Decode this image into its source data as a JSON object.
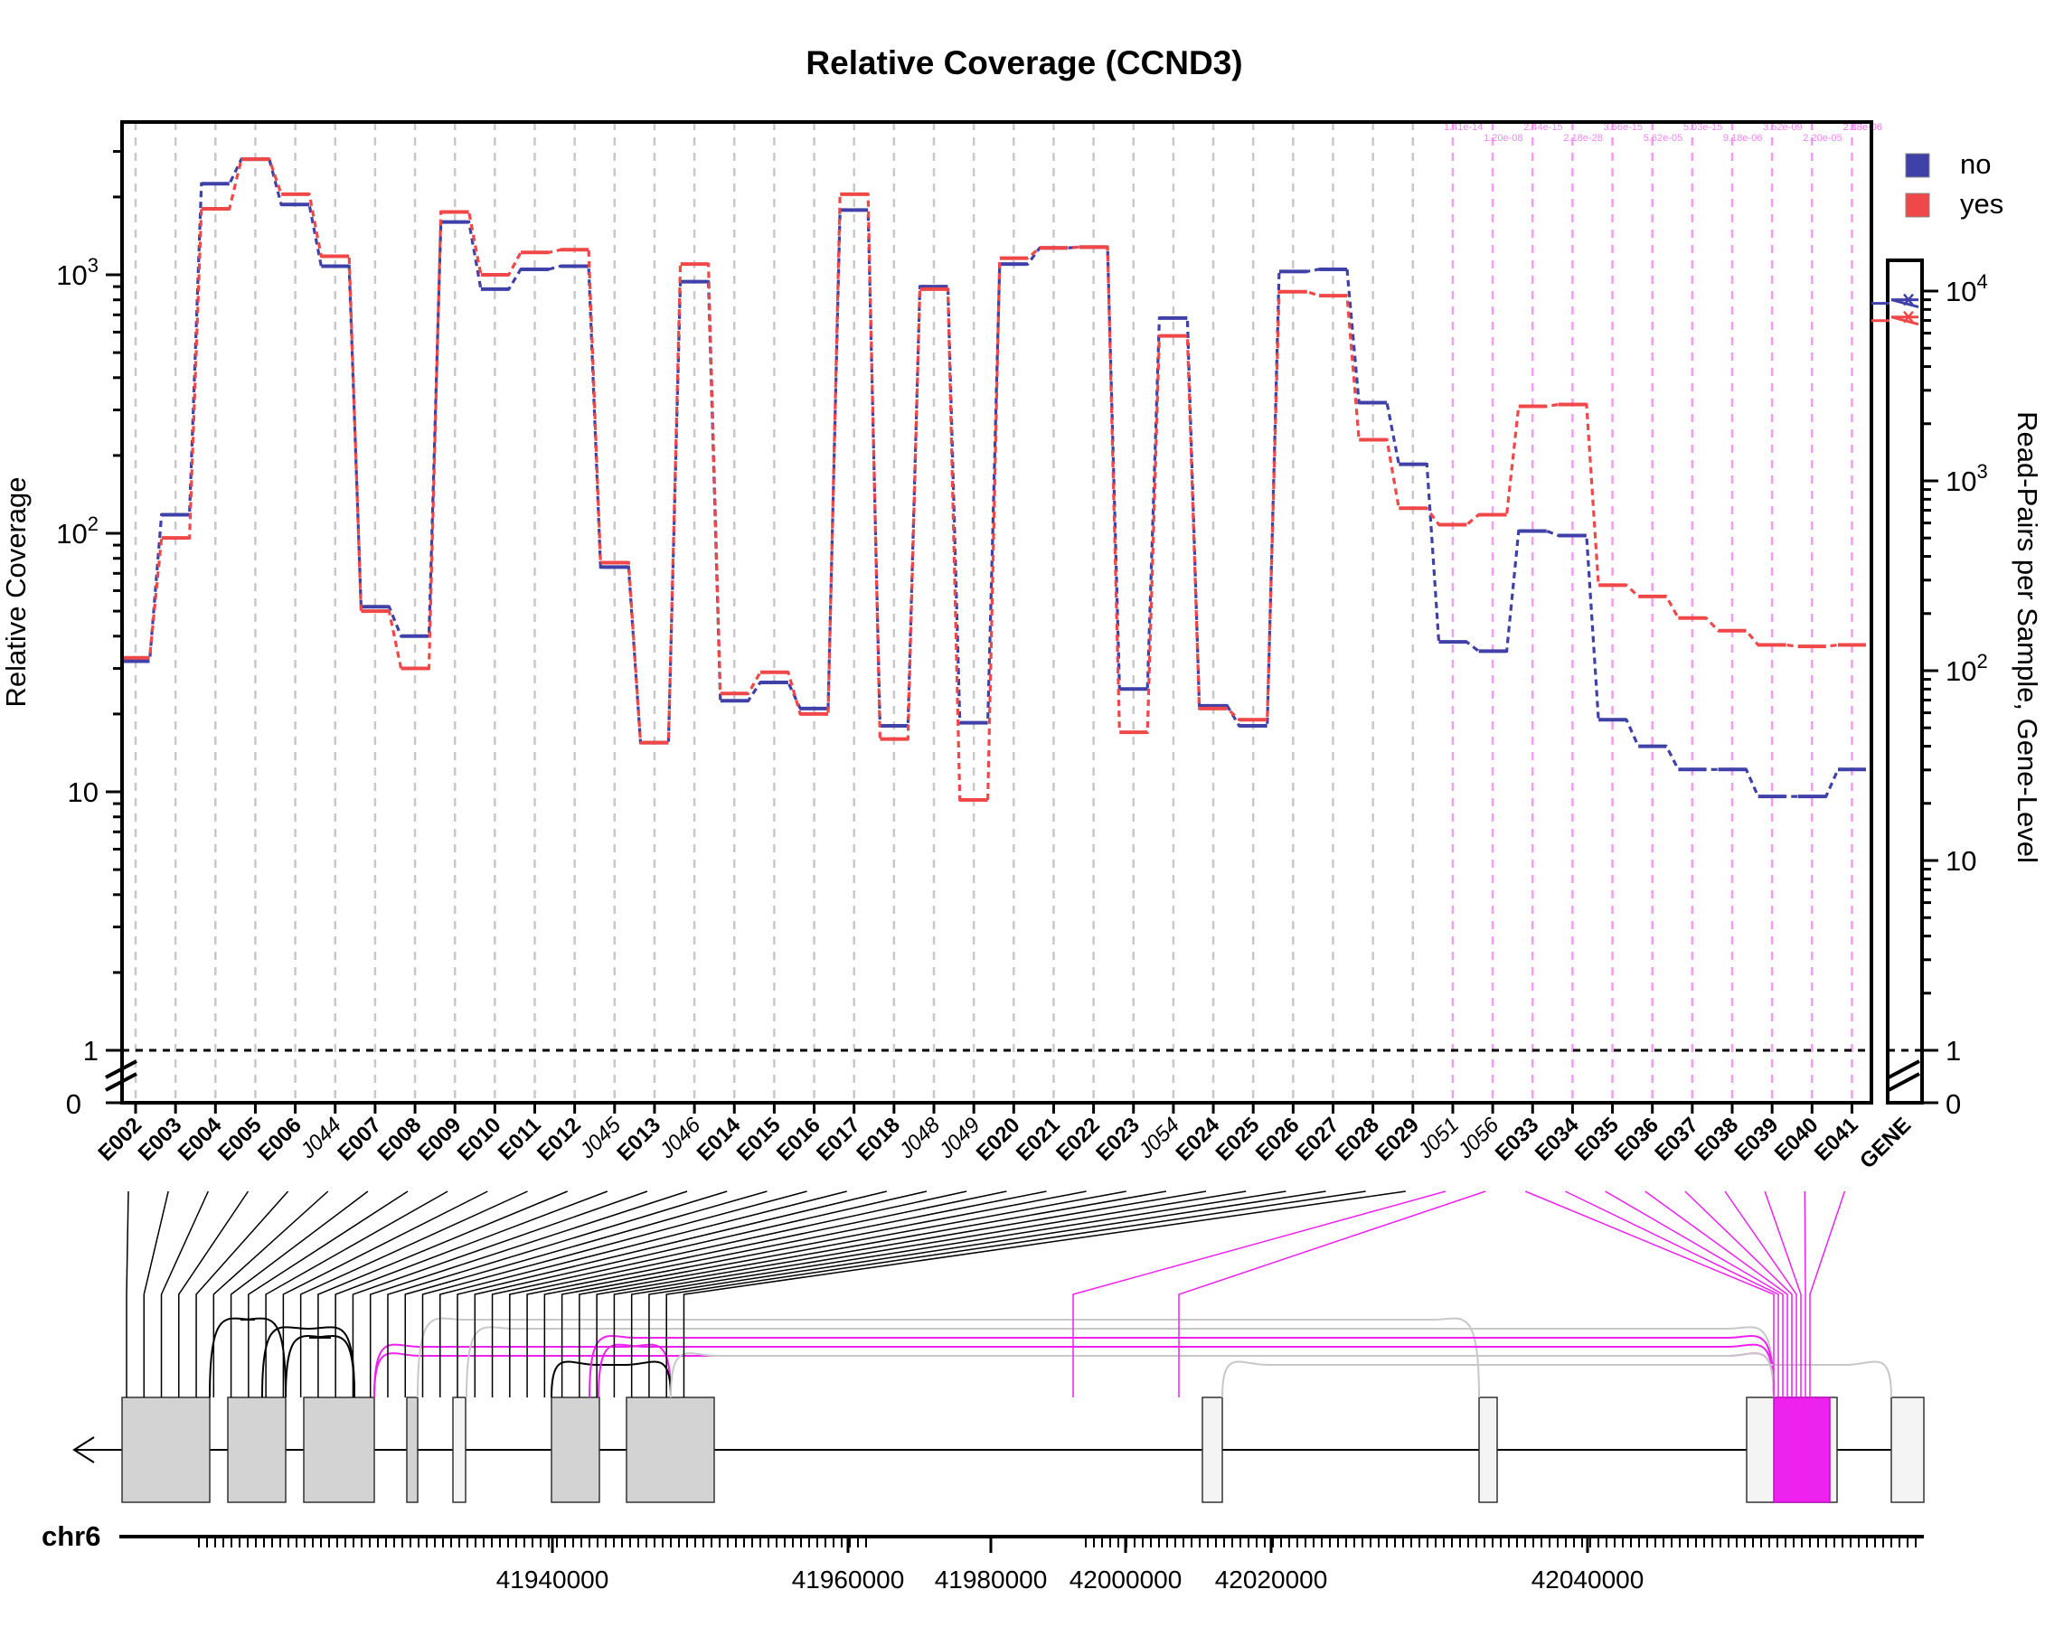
{
  "chart_data": {
    "type": "line",
    "title": "Relative Coverage (CCND3)",
    "ylabel": "Relative Coverage",
    "y2label": "Read-Pairs per Sample, Gene-Level",
    "scale": "log",
    "ylim": [
      0.5,
      4500
    ],
    "y_ticks": [
      {
        "v": 1,
        "label": "1"
      },
      {
        "v": 10,
        "label": "10"
      },
      {
        "v": 100,
        "label": "10",
        "exp": "2"
      },
      {
        "v": 1000,
        "label": "10",
        "exp": "3"
      }
    ],
    "y_zero_label": "0",
    "y2lim": [
      0.5,
      15000
    ],
    "y2_ticks": [
      {
        "v": 1,
        "label": "1"
      },
      {
        "v": 10,
        "label": "10"
      },
      {
        "v": 100,
        "label": "10",
        "exp": "2"
      },
      {
        "v": 1000,
        "label": "10",
        "exp": "3"
      },
      {
        "v": 10000,
        "label": "10",
        "exp": "4"
      }
    ],
    "y2_zero_label": "0",
    "legend_position": "top-right",
    "colors": {
      "no": "#3f40a8",
      "yes": "#f04848",
      "highlight": "#ee22ee",
      "grid": "#c8c8c8",
      "feature": "#d3d3d3"
    },
    "categories": [
      "E002",
      "E003",
      "E004",
      "E005",
      "E006",
      "J044",
      "E007",
      "E008",
      "E009",
      "E010",
      "E011",
      "E012",
      "J045",
      "E013",
      "J046",
      "E014",
      "E015",
      "E016",
      "E017",
      "E018",
      "J048",
      "J049",
      "E020",
      "E021",
      "E022",
      "E023",
      "J054",
      "E024",
      "E025",
      "E026",
      "E027",
      "E028",
      "E029",
      "J051",
      "J056",
      "E033",
      "E034",
      "E035",
      "E036",
      "E037",
      "E038",
      "E039",
      "E040",
      "E041"
    ],
    "junction_categories": [
      "J044",
      "J045",
      "J046",
      "J048",
      "J049",
      "J054",
      "J051",
      "J056"
    ],
    "highlighted_categories": [
      "J051",
      "J056",
      "E033",
      "E034",
      "E035",
      "E036",
      "E037",
      "E038",
      "E039",
      "E040",
      "E041"
    ],
    "series": [
      {
        "name": "no",
        "values": [
          32,
          118,
          2250,
          2800,
          1870,
          1080,
          52,
          40,
          1600,
          880,
          1050,
          1080,
          74,
          15.5,
          940,
          22.5,
          26.5,
          21,
          1780,
          18,
          900,
          18.5,
          1100,
          1270,
          1280,
          25,
          680,
          21.5,
          18,
          1030,
          1050,
          320,
          185,
          38,
          35,
          102,
          98,
          19,
          15,
          12.2,
          12.2,
          9.6,
          9.6,
          12.2
        ]
      },
      {
        "name": "yes",
        "values": [
          33,
          96,
          1800,
          2800,
          2050,
          1180,
          50,
          30,
          1750,
          1000,
          1220,
          1250,
          77,
          15.5,
          1100,
          24,
          29,
          20,
          2050,
          16,
          880,
          9.3,
          1160,
          1270,
          1280,
          17,
          580,
          21,
          19,
          860,
          830,
          230,
          125,
          108,
          118,
          310,
          315,
          63,
          57,
          47,
          42,
          37,
          36.5,
          37
        ]
      }
    ],
    "gene_level": {
      "label": "GENE",
      "no": 9000,
      "yes": 7300
    },
    "pvalues_line1": [
      "1.41e-14",
      "2.44e-15",
      "3.66e-15",
      "5.03e-15",
      "3.52e-09",
      "2.88e-06",
      "2.13e-06"
    ],
    "pvalues_line2": [
      "1.20e-08",
      "2.18e-28",
      "5.62e-05",
      "9.18e-06",
      "2.20e-05"
    ]
  },
  "gene_track": {
    "chrom_label": "chr6",
    "axis_ticks": [
      "41940000",
      "41960000",
      "41980000",
      "42000000",
      "42020000",
      "42040000"
    ]
  }
}
